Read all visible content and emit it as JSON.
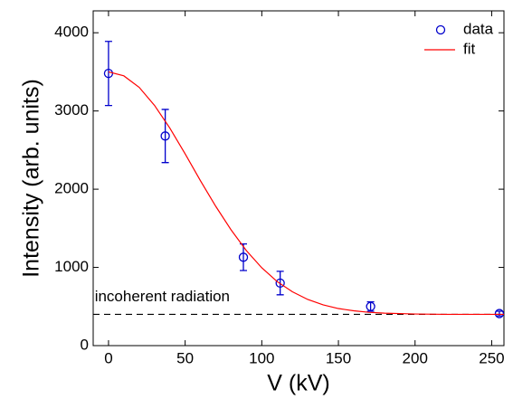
{
  "chart_data": {
    "type": "scatter",
    "xlabel": "V (kV)",
    "ylabel": "Intensity (arb. units)",
    "xlim": [
      -10,
      258
    ],
    "ylim": [
      0,
      4280
    ],
    "xticks": [
      0,
      50,
      100,
      150,
      200,
      250
    ],
    "yticks": [
      0,
      1000,
      2000,
      3000,
      4000
    ],
    "legend": "upper right",
    "series": [
      {
        "name": "data",
        "type": "errorbar",
        "color": "#0000cc",
        "x": [
          0,
          37,
          88,
          112,
          171,
          255
        ],
        "values": [
          3480,
          2680,
          1130,
          800,
          500,
          410
        ],
        "errors": [
          410,
          340,
          170,
          150,
          60,
          30
        ]
      },
      {
        "name": "fit",
        "type": "line",
        "color": "#ff0000",
        "x": [
          0,
          10,
          20,
          30,
          40,
          50,
          60,
          70,
          80,
          90,
          100,
          110,
          120,
          130,
          140,
          150,
          160,
          170,
          180,
          200,
          220,
          258
        ],
        "values": [
          3500,
          3449,
          3302,
          3072,
          2781,
          2452,
          2108,
          1780,
          1479,
          1213,
          995,
          819,
          688,
          590,
          521,
          474,
          445,
          426,
          415,
          404,
          400,
          400
        ]
      }
    ],
    "reference_line": {
      "y": 400,
      "style": "dashed",
      "color": "#000000"
    },
    "annotations": [
      {
        "text": "incoherent radiation",
        "x": -9,
        "y": 620
      }
    ]
  }
}
